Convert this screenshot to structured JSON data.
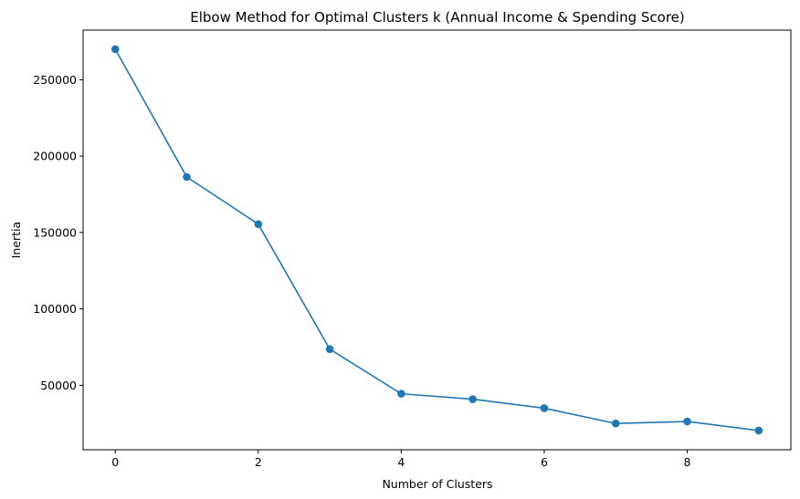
{
  "chart_data": {
    "type": "line",
    "title": "Elbow Method for Optimal Clusters k (Annual Income & Spending Score)",
    "xlabel": "Number of Clusters",
    "ylabel": "Inertia",
    "x": [
      0,
      1,
      2,
      3,
      4,
      5,
      6,
      7,
      8,
      9
    ],
    "series": [
      {
        "values": [
          269981,
          186362,
          155500,
          73679,
          44448,
          40900,
          35000,
          24987,
          26300,
          20400
        ]
      }
    ],
    "xlim": [
      -0.45,
      9.45
    ],
    "ylim": [
      7800,
      282500
    ],
    "xticks": [
      0,
      2,
      4,
      6,
      8
    ],
    "yticks": [
      50000,
      100000,
      150000,
      200000,
      250000
    ],
    "marker": "circle",
    "grid": false,
    "legend": "none",
    "colors": {
      "line": "#1f77b4",
      "axes": "#000000",
      "background": "#ffffff"
    }
  }
}
